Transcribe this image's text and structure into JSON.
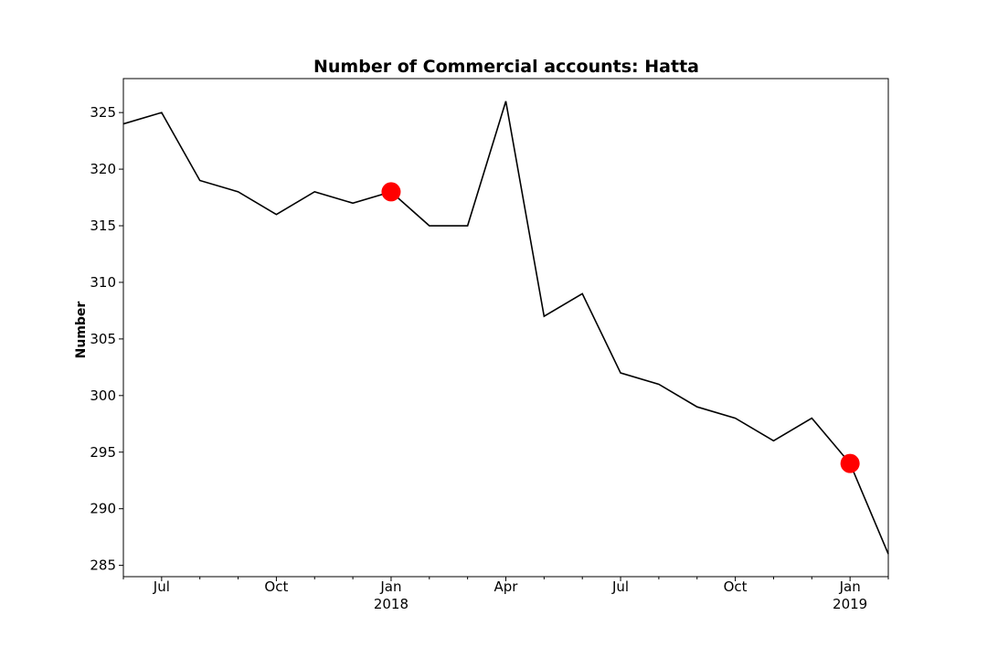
{
  "chart_data": {
    "type": "line",
    "title": "Number of Commercial accounts: Hatta",
    "xlabel": "",
    "ylabel": "Number",
    "x": [
      "2017-06-01",
      "2017-07-01",
      "2017-08-01",
      "2017-09-01",
      "2017-10-01",
      "2017-11-01",
      "2017-12-01",
      "2018-01-01",
      "2018-02-01",
      "2018-03-01",
      "2018-04-01",
      "2018-05-01",
      "2018-06-01",
      "2018-07-01",
      "2018-08-01",
      "2018-09-01",
      "2018-10-01",
      "2018-11-01",
      "2018-12-01",
      "2019-01-01",
      "2019-02-01"
    ],
    "series": [
      {
        "color": "#000000",
        "values": [
          324,
          325,
          319,
          318,
          316,
          318,
          317,
          318,
          315,
          315,
          326,
          307,
          309,
          302,
          301,
          299,
          298,
          296,
          298,
          294,
          286
        ]
      }
    ],
    "highlights": {
      "color": "#ff0000",
      "points": [
        {
          "x": "2018-01-01",
          "y": 318
        },
        {
          "x": "2019-01-01",
          "y": 294
        }
      ]
    },
    "xlim": [
      "2017-06-01",
      "2019-02-01"
    ],
    "ylim": [
      284,
      328
    ],
    "yticks": [
      285,
      290,
      295,
      300,
      305,
      310,
      315,
      320,
      325
    ],
    "xticks": [
      {
        "x": "2017-07-01",
        "label": "Jul",
        "sublabel": ""
      },
      {
        "x": "2017-10-01",
        "label": "Oct",
        "sublabel": ""
      },
      {
        "x": "2018-01-01",
        "label": "Jan",
        "sublabel": "2018"
      },
      {
        "x": "2018-04-01",
        "label": "Apr",
        "sublabel": ""
      },
      {
        "x": "2018-07-01",
        "label": "Jul",
        "sublabel": ""
      },
      {
        "x": "2018-10-01",
        "label": "Oct",
        "sublabel": ""
      },
      {
        "x": "2019-01-01",
        "label": "Jan",
        "sublabel": "2019"
      }
    ],
    "grid": false,
    "legend": "none"
  }
}
